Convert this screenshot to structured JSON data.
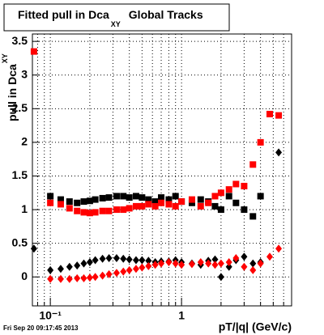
{
  "chart_data": {
    "type": "scatter",
    "title": "Fitted pull in Dca",
    "title_sub": "XY",
    "title_rest": "Global Tracks",
    "ylabel": "pull in Dca",
    "ylabel_sub": "XY",
    "xlabel": "pT/|q| (GeV/c)",
    "footer": "Fri Sep 20 09:17:45 2013",
    "xlog": true,
    "grid": true,
    "xlim": [
      0.073,
      6.9
    ],
    "ylim": [
      -0.43,
      3.61
    ],
    "xticks": [
      {
        "value": 0.1,
        "label": "10⁻¹"
      },
      1
    ],
    "xminorticks": [
      0.08,
      0.09,
      0.2,
      0.3,
      0.4,
      0.5,
      0.6,
      0.7,
      0.8,
      0.9,
      2,
      3,
      4,
      5,
      6
    ],
    "yticks": [
      0,
      0.5,
      1,
      1.5,
      2,
      2.5,
      3,
      3.5
    ],
    "x": [
      0.075,
      0.1,
      0.12,
      0.14,
      0.16,
      0.18,
      0.2,
      0.22,
      0.25,
      0.28,
      0.32,
      0.36,
      0.4,
      0.45,
      0.5,
      0.56,
      0.63,
      0.7,
      0.8,
      0.9,
      1.0,
      1.2,
      1.4,
      1.6,
      1.8,
      2.0,
      2.3,
      2.6,
      3.0,
      3.5,
      4.0,
      4.7,
      5.5
    ],
    "series": [
      {
        "marker": "square",
        "color": "#000000",
        "values": [
          null,
          1.2,
          1.15,
          1.12,
          1.1,
          1.12,
          1.13,
          1.15,
          1.17,
          1.18,
          1.2,
          1.2,
          1.18,
          1.2,
          1.18,
          1.15,
          1.12,
          1.18,
          1.15,
          1.2,
          1.12,
          1.1,
          1.15,
          1.12,
          1.05,
          1.0,
          1.2,
          1.1,
          1.0,
          0.9,
          1.2,
          null,
          null
        ]
      },
      {
        "marker": "square",
        "color": "#ff0000",
        "values": [
          3.35,
          1.1,
          1.08,
          1.02,
          0.98,
          0.96,
          0.95,
          0.96,
          0.98,
          0.98,
          1.0,
          1.0,
          1.02,
          1.05,
          1.05,
          1.08,
          1.05,
          1.1,
          1.08,
          1.05,
          1.12,
          1.15,
          1.05,
          1.1,
          1.2,
          1.25,
          1.3,
          1.38,
          1.35,
          1.67,
          2.0,
          2.42,
          2.4
        ]
      },
      {
        "marker": "diamond",
        "color": "#000000",
        "values": [
          0.42,
          0.1,
          0.12,
          0.15,
          0.17,
          0.2,
          0.22,
          0.25,
          0.27,
          0.28,
          0.28,
          0.27,
          0.26,
          0.25,
          0.25,
          0.24,
          0.22,
          0.23,
          0.23,
          0.25,
          0.22,
          0.2,
          0.18,
          0.24,
          0.26,
          0.0,
          0.15,
          0.25,
          0.3,
          0.2,
          0.22,
          null,
          1.85
        ]
      },
      {
        "marker": "diamond",
        "color": "#ff0000",
        "values": [
          null,
          -0.03,
          -0.03,
          -0.03,
          -0.02,
          -0.02,
          -0.01,
          0.0,
          0.02,
          0.04,
          0.06,
          0.08,
          0.1,
          0.12,
          0.14,
          0.16,
          0.18,
          0.2,
          0.22,
          0.2,
          0.18,
          0.19,
          0.22,
          0.2,
          0.18,
          0.2,
          0.22,
          0.28,
          0.15,
          0.1,
          0.2,
          0.3,
          0.42
        ]
      }
    ]
  }
}
